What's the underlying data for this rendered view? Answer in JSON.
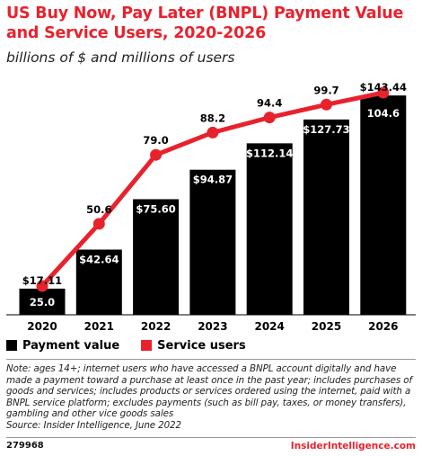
{
  "header": {
    "title": "US Buy Now, Pay Later (BNPL) Payment Value and Service Users, 2020-2026",
    "subtitle": "billions of $ and millions of users"
  },
  "colors": {
    "accent": "#e8222d",
    "bar": "#000000",
    "bar_label": "#ffffff"
  },
  "chart_data": {
    "type": "bar",
    "categories": [
      "2020",
      "2021",
      "2022",
      "2023",
      "2024",
      "2025",
      "2026"
    ],
    "series": [
      {
        "name": "Payment value",
        "type": "bar",
        "values": [
          17.11,
          42.64,
          75.6,
          94.87,
          112.14,
          127.73,
          143.44
        ],
        "labels": [
          "$17.11",
          "$42.64",
          "$75.60",
          "$94.87",
          "$112.14",
          "$127.73",
          "$143.44"
        ]
      },
      {
        "name": "Service users",
        "type": "line",
        "values": [
          25.0,
          50.6,
          79.0,
          88.2,
          94.4,
          99.7,
          104.6
        ],
        "labels": [
          "25.0",
          "50.6",
          "79.0",
          "88.2",
          "94.4",
          "99.7",
          "104.6"
        ]
      }
    ],
    "legend_position": "bottom-left"
  },
  "legend": {
    "bar_label": "Payment value",
    "line_label": "Service users"
  },
  "note": "Note: ages 14+; internet users who have accessed a BNPL account digitally and have made a payment toward a purchase at least once in the past year; includes purchases of goods and services; includes products or services ordered using the internet, paid with a BNPL service platform; excludes payments (such as bill pay, taxes, or money transfers), gambling and other vice goods sales",
  "source": "Source: Insider Intelligence, June 2022",
  "footer": {
    "chart_id": "279968",
    "brand": "InsiderIntelligence.com"
  }
}
